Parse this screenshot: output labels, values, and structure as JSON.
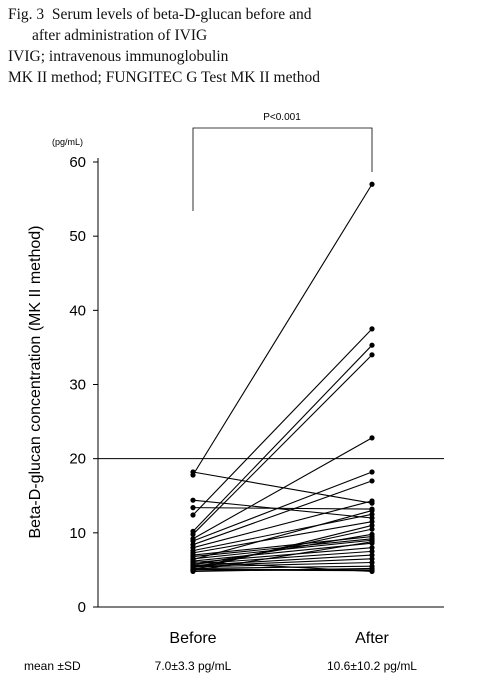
{
  "caption": {
    "line1": "Fig. 3  Serum levels of beta-D-glucan before and",
    "line2": "after administration of IVIG",
    "line3": "IVIG; intravenous immunoglobulin",
    "line4": "MK II method; FUNGITEC G Test MK II method"
  },
  "chart_data": {
    "type": "line",
    "categories": [
      "Before",
      "After"
    ],
    "ylabel": "Beta-D-glucan concentration (MK II method)",
    "yunit": "(pg/mL)",
    "ylim": [
      0,
      60
    ],
    "yticks": [
      0,
      10,
      20,
      30,
      40,
      50,
      60
    ],
    "reference_line": 20,
    "significance": "P<0.001",
    "stats_label": "mean ±SD",
    "stats": [
      "7.0±3.3 pg/mL",
      "10.6±10.2 pg/mL"
    ],
    "pairs": [
      [
        18.2,
        14.0
      ],
      [
        17.8,
        57.0
      ],
      [
        14.4,
        12.0
      ],
      [
        13.4,
        13.2
      ],
      [
        12.4,
        37.5
      ],
      [
        10.2,
        35.3
      ],
      [
        9.8,
        34.0
      ],
      [
        9.2,
        22.8
      ],
      [
        8.9,
        18.2
      ],
      [
        8.4,
        17.0
      ],
      [
        8.0,
        14.3
      ],
      [
        7.6,
        12.5
      ],
      [
        7.3,
        11.5
      ],
      [
        7.0,
        9.5
      ],
      [
        6.8,
        9.2
      ],
      [
        6.5,
        9.0
      ],
      [
        6.2,
        8.6
      ],
      [
        6.0,
        8.0
      ],
      [
        5.8,
        7.5
      ],
      [
        5.6,
        7.0
      ],
      [
        5.5,
        6.5
      ],
      [
        5.4,
        6.0
      ],
      [
        5.2,
        5.5
      ],
      [
        5.1,
        5.0
      ],
      [
        5.0,
        4.9
      ],
      [
        4.9,
        8.8
      ],
      [
        4.8,
        5.2
      ],
      [
        6.1,
        4.8
      ],
      [
        5.3,
        10.5
      ],
      [
        5.7,
        9.8
      ],
      [
        6.4,
        13.0
      ],
      [
        5.0,
        11.0
      ]
    ]
  }
}
